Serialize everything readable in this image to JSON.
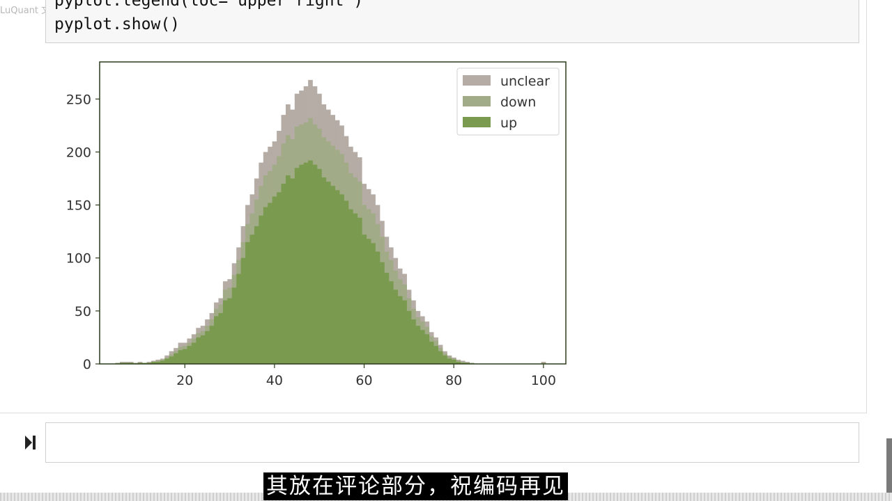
{
  "watermark": "LuQuant 文档",
  "code_cell": {
    "lines": [
      "pyplot.legend(loc='upper right')",
      "pyplot.show()"
    ]
  },
  "subtitle": "其放在评论部分，祝编码再见",
  "chart_data": {
    "type": "bar",
    "title": "",
    "xlabel": "",
    "ylabel": "",
    "xlim": [
      1,
      105
    ],
    "ylim": [
      0,
      285
    ],
    "xticks": [
      20,
      40,
      60,
      80,
      100
    ],
    "yticks": [
      0,
      50,
      100,
      150,
      200,
      250
    ],
    "grid": false,
    "legend_position": "upper right",
    "colors": {
      "unclear": "#b5aca5",
      "down": "#a2ab87",
      "up": "#7a9b4f"
    },
    "x": [
      5,
      6,
      7,
      8,
      9,
      10,
      11,
      12,
      13,
      14,
      15,
      16,
      17,
      18,
      19,
      20,
      21,
      22,
      23,
      24,
      25,
      26,
      27,
      28,
      29,
      30,
      31,
      32,
      33,
      34,
      35,
      36,
      37,
      38,
      39,
      40,
      41,
      42,
      43,
      44,
      45,
      46,
      47,
      48,
      49,
      50,
      51,
      52,
      53,
      54,
      55,
      56,
      57,
      58,
      59,
      60,
      61,
      62,
      63,
      64,
      65,
      66,
      67,
      68,
      69,
      70,
      71,
      72,
      73,
      74,
      75,
      76,
      77,
      78,
      79,
      80,
      81,
      82,
      83,
      84,
      85,
      86,
      87,
      88,
      89,
      90,
      91,
      92,
      93,
      94,
      95,
      96,
      97,
      98,
      99,
      100
    ],
    "series": [
      {
        "name": "unclear",
        "values": [
          1,
          2,
          2,
          2,
          1,
          2,
          1,
          2,
          3,
          4,
          5,
          8,
          12,
          15,
          20,
          20,
          24,
          28,
          34,
          36,
          42,
          48,
          58,
          62,
          78,
          80,
          95,
          110,
          130,
          150,
          160,
          175,
          190,
          200,
          205,
          210,
          220,
          235,
          245,
          240,
          255,
          258,
          262,
          268,
          262,
          255,
          245,
          240,
          235,
          230,
          225,
          215,
          205,
          200,
          195,
          170,
          165,
          160,
          150,
          135,
          120,
          110,
          100,
          90,
          85,
          70,
          60,
          50,
          45,
          40,
          30,
          25,
          18,
          12,
          8,
          6,
          4,
          3,
          2,
          1,
          0,
          0,
          0,
          0,
          0,
          0,
          0,
          0,
          0,
          0,
          0,
          0,
          0,
          0,
          0,
          2
        ]
      },
      {
        "name": "down",
        "values": [
          1,
          1,
          1,
          1,
          1,
          1,
          1,
          1,
          2,
          3,
          4,
          6,
          9,
          12,
          16,
          17,
          20,
          24,
          29,
          31,
          36,
          42,
          52,
          56,
          70,
          72,
          84,
          98,
          115,
          132,
          142,
          155,
          168,
          178,
          182,
          188,
          196,
          208,
          216,
          212,
          224,
          226,
          228,
          232,
          226,
          222,
          214,
          210,
          206,
          202,
          198,
          190,
          180,
          176,
          172,
          150,
          146,
          142,
          132,
          120,
          106,
          98,
          88,
          80,
          75,
          62,
          52,
          44,
          40,
          35,
          26,
          22,
          15,
          10,
          7,
          5,
          3,
          2,
          1,
          1,
          0,
          0,
          0,
          0,
          0,
          0,
          0,
          0,
          0,
          0,
          0,
          0,
          0,
          0,
          0,
          1
        ]
      },
      {
        "name": "up",
        "values": [
          0,
          1,
          1,
          1,
          0,
          1,
          1,
          1,
          2,
          2,
          3,
          5,
          7,
          10,
          13,
          14,
          17,
          20,
          25,
          27,
          31,
          36,
          45,
          48,
          60,
          62,
          72,
          85,
          100,
          115,
          122,
          130,
          140,
          148,
          152,
          158,
          162,
          170,
          178,
          175,
          185,
          188,
          190,
          192,
          188,
          184,
          176,
          172,
          168,
          164,
          160,
          154,
          146,
          142,
          138,
          122,
          118,
          114,
          106,
          96,
          86,
          78,
          70,
          64,
          60,
          50,
          42,
          36,
          32,
          28,
          21,
          17,
          12,
          8,
          5,
          4,
          2,
          1,
          1,
          0,
          0,
          0,
          0,
          0,
          0,
          0,
          0,
          0,
          0,
          0,
          0,
          0,
          0,
          0,
          0,
          0
        ]
      }
    ]
  }
}
